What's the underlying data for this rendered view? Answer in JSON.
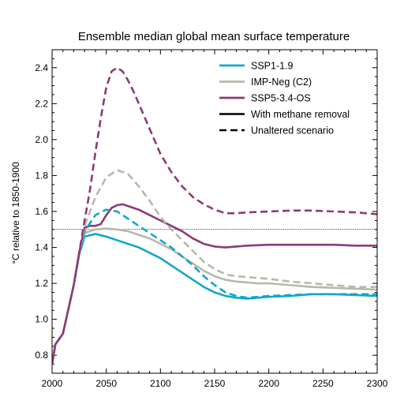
{
  "chart_data": {
    "type": "line",
    "title": "Ensemble median global mean surface temperature",
    "xlabel": "",
    "ylabel": "°C relative to 1850-1900",
    "xlim": [
      2000,
      2300
    ],
    "ylim": [
      0.7,
      2.5
    ],
    "x_ticks": [
      "2000",
      "2050",
      "2100",
      "2150",
      "2200",
      "2250",
      "2300"
    ],
    "y_ticks": [
      "0.8",
      "1.0",
      "1.2",
      "1.4",
      "1.6",
      "1.8",
      "2.0",
      "2.2",
      "2.4"
    ],
    "reference_line": {
      "y": 1.5,
      "style": "dotted",
      "color": "#000000"
    },
    "legend_position": "top-right",
    "legend": {
      "scenarios": [
        {
          "name": "SSP1-1.9",
          "color": "#10a6cc"
        },
        {
          "name": "IMP-Neg (C2)",
          "color": "#b8b8a8"
        },
        {
          "name": "SSP5-3.4-OS",
          "color": "#8c3a78"
        }
      ],
      "styles": [
        {
          "name": "With methane removal",
          "dash": "solid"
        },
        {
          "name": "Unaltered scenario",
          "dash": "dashed"
        }
      ]
    },
    "series": [
      {
        "scenario": "SSP1-1.9",
        "variant": "Unaltered scenario",
        "color": "#10a6cc",
        "dash": "dashed",
        "x": [
          2000,
          2003,
          2010,
          2020,
          2025,
          2030,
          2040,
          2050,
          2060,
          2070,
          2080,
          2090,
          2100,
          2110,
          2120,
          2130,
          2140,
          2150,
          2160,
          2170,
          2180,
          2190,
          2200,
          2220,
          2240,
          2260,
          2280,
          2300
        ],
        "y": [
          0.75,
          0.86,
          0.92,
          1.19,
          1.36,
          1.49,
          1.58,
          1.61,
          1.6,
          1.56,
          1.52,
          1.48,
          1.44,
          1.4,
          1.35,
          1.3,
          1.24,
          1.19,
          1.15,
          1.13,
          1.12,
          1.125,
          1.13,
          1.135,
          1.14,
          1.14,
          1.14,
          1.14
        ]
      },
      {
        "scenario": "SSP1-1.9",
        "variant": "With methane removal",
        "color": "#10a6cc",
        "dash": "solid",
        "x": [
          2000,
          2003,
          2010,
          2020,
          2025,
          2030,
          2040,
          2050,
          2060,
          2070,
          2080,
          2090,
          2100,
          2110,
          2120,
          2130,
          2140,
          2150,
          2160,
          2170,
          2180,
          2190,
          2200,
          2220,
          2240,
          2260,
          2280,
          2300
        ],
        "y": [
          0.75,
          0.86,
          0.92,
          1.19,
          1.36,
          1.46,
          1.475,
          1.46,
          1.44,
          1.42,
          1.4,
          1.37,
          1.34,
          1.3,
          1.26,
          1.22,
          1.18,
          1.15,
          1.13,
          1.12,
          1.115,
          1.12,
          1.125,
          1.13,
          1.14,
          1.14,
          1.135,
          1.13
        ]
      },
      {
        "scenario": "IMP-Neg (C2)",
        "variant": "Unaltered scenario",
        "color": "#b8b8a8",
        "dash": "dashed",
        "x": [
          2000,
          2003,
          2010,
          2020,
          2025,
          2030,
          2040,
          2050,
          2060,
          2070,
          2080,
          2090,
          2100,
          2110,
          2120,
          2130,
          2140,
          2150,
          2160,
          2170,
          2180,
          2190,
          2200,
          2220,
          2240,
          2260,
          2280,
          2300
        ],
        "y": [
          0.75,
          0.86,
          0.92,
          1.19,
          1.37,
          1.52,
          1.68,
          1.79,
          1.83,
          1.81,
          1.74,
          1.66,
          1.57,
          1.5,
          1.44,
          1.38,
          1.32,
          1.28,
          1.25,
          1.24,
          1.235,
          1.23,
          1.225,
          1.21,
          1.2,
          1.19,
          1.18,
          1.18
        ]
      },
      {
        "scenario": "IMP-Neg (C2)",
        "variant": "With methane removal",
        "color": "#b8b8a8",
        "dash": "solid",
        "x": [
          2000,
          2003,
          2010,
          2020,
          2025,
          2030,
          2040,
          2050,
          2060,
          2070,
          2080,
          2090,
          2100,
          2110,
          2120,
          2130,
          2140,
          2150,
          2160,
          2170,
          2180,
          2190,
          2200,
          2220,
          2240,
          2260,
          2280,
          2300
        ],
        "y": [
          0.75,
          0.86,
          0.92,
          1.19,
          1.37,
          1.48,
          1.5,
          1.505,
          1.5,
          1.49,
          1.47,
          1.45,
          1.42,
          1.39,
          1.35,
          1.31,
          1.27,
          1.24,
          1.22,
          1.21,
          1.205,
          1.2,
          1.2,
          1.19,
          1.18,
          1.175,
          1.17,
          1.165
        ]
      },
      {
        "scenario": "SSP5-3.4-OS",
        "variant": "Unaltered scenario",
        "color": "#8c3a78",
        "dash": "dashed",
        "x": [
          2000,
          2003,
          2010,
          2020,
          2025,
          2030,
          2035,
          2040,
          2045,
          2050,
          2055,
          2060,
          2065,
          2070,
          2075,
          2080,
          2090,
          2100,
          2110,
          2120,
          2130,
          2140,
          2150,
          2160,
          2170,
          2180,
          2200,
          2220,
          2240,
          2260,
          2280,
          2300
        ],
        "y": [
          0.75,
          0.86,
          0.92,
          1.19,
          1.37,
          1.55,
          1.72,
          1.93,
          2.12,
          2.29,
          2.38,
          2.4,
          2.38,
          2.33,
          2.27,
          2.2,
          2.06,
          1.92,
          1.82,
          1.74,
          1.68,
          1.64,
          1.61,
          1.59,
          1.59,
          1.595,
          1.6,
          1.605,
          1.605,
          1.6,
          1.595,
          1.585
        ]
      },
      {
        "scenario": "SSP5-3.4-OS",
        "variant": "With methane removal",
        "color": "#8c3a78",
        "dash": "solid",
        "x": [
          2000,
          2003,
          2010,
          2020,
          2025,
          2030,
          2035,
          2040,
          2045,
          2050,
          2055,
          2060,
          2065,
          2070,
          2080,
          2090,
          2100,
          2110,
          2120,
          2130,
          2140,
          2150,
          2160,
          2170,
          2180,
          2200,
          2220,
          2240,
          2260,
          2280,
          2300
        ],
        "y": [
          0.75,
          0.86,
          0.92,
          1.19,
          1.37,
          1.51,
          1.52,
          1.52,
          1.53,
          1.58,
          1.62,
          1.635,
          1.64,
          1.63,
          1.61,
          1.58,
          1.55,
          1.52,
          1.49,
          1.45,
          1.42,
          1.405,
          1.4,
          1.405,
          1.41,
          1.415,
          1.415,
          1.415,
          1.415,
          1.41,
          1.41
        ]
      }
    ]
  }
}
